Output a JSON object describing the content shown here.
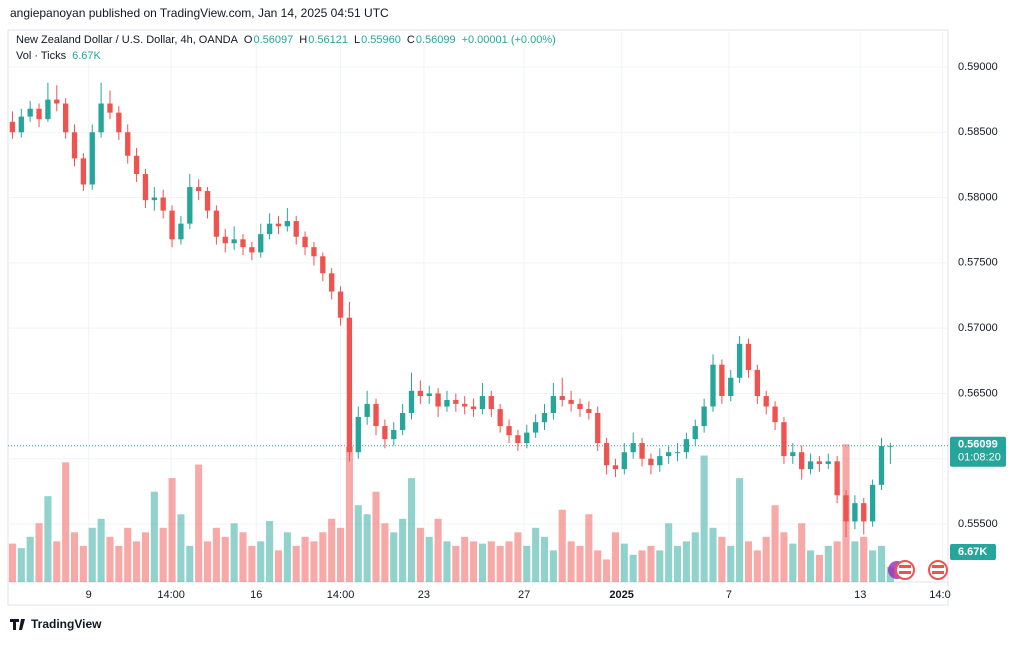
{
  "header": {
    "attribution": "angiepanoyan published on TradingView.com, Jan 14, 2025 04:51 UTC"
  },
  "chart_data": {
    "type": "candlestick",
    "title": "New Zealand Dollar / U.S. Dollar, 4h, OANDA",
    "ohlc_legend": [
      {
        "label": "O",
        "value": "0.56097"
      },
      {
        "label": "H",
        "value": "0.56121"
      },
      {
        "label": "L",
        "value": "0.55960"
      },
      {
        "label": "C",
        "value": "0.56099"
      }
    ],
    "change": "+0.00001 (+0.00%)",
    "volume_title": "Vol · Ticks",
    "volume_value": "6.67K",
    "last_price": {
      "value": 0.56099,
      "label": "0.56099"
    },
    "countdown": "01:08:20",
    "up_color": "#26a69a",
    "down_color": "#ef5350",
    "grid": true,
    "ylim": [
      0.55056,
      0.59283
    ],
    "yticks": [
      {
        "value": 0.59,
        "label": "0.59000"
      },
      {
        "value": 0.585,
        "label": "0.58500"
      },
      {
        "value": 0.58,
        "label": "0.58000"
      },
      {
        "value": 0.575,
        "label": "0.57500"
      },
      {
        "value": 0.57,
        "label": "0.57000"
      },
      {
        "value": 0.565,
        "label": "0.56500"
      },
      {
        "value": 0.56,
        "label": "0.56000"
      },
      {
        "value": 0.555,
        "label": "0.55500"
      }
    ],
    "xlim": [
      -0.5,
      105.5
    ],
    "xticks": [
      {
        "value": 8.6,
        "label": "9"
      },
      {
        "value": 17.9,
        "label": "14:00"
      },
      {
        "value": 27.5,
        "label": "16"
      },
      {
        "value": 37,
        "label": "14:00"
      },
      {
        "value": 46.4,
        "label": "23"
      },
      {
        "value": 57.7,
        "label": "27"
      },
      {
        "value": 68.7,
        "label": "2025"
      },
      {
        "value": 80.8,
        "label": "7"
      },
      {
        "value": 95.6,
        "label": "13"
      },
      {
        "value": 104.9,
        "label": "14:0"
      }
    ],
    "vlim": [
      0,
      62000
    ],
    "candles": [
      [
        0.5858,
        0.5866,
        0.5845,
        0.585
      ],
      [
        0.585,
        0.5868,
        0.5846,
        0.5862
      ],
      [
        0.5862,
        0.5874,
        0.5858,
        0.5868
      ],
      [
        0.5868,
        0.5872,
        0.5854,
        0.586
      ],
      [
        0.586,
        0.5888,
        0.5858,
        0.5875
      ],
      [
        0.5875,
        0.5886,
        0.5866,
        0.5872
      ],
      [
        0.5872,
        0.5876,
        0.5845,
        0.585
      ],
      [
        0.585,
        0.5856,
        0.5824,
        0.583
      ],
      [
        0.583,
        0.5834,
        0.5805,
        0.581
      ],
      [
        0.581,
        0.5856,
        0.5806,
        0.585
      ],
      [
        0.585,
        0.5888,
        0.5846,
        0.5872
      ],
      [
        0.5872,
        0.5882,
        0.586,
        0.5865
      ],
      [
        0.5865,
        0.587,
        0.5844,
        0.585
      ],
      [
        0.585,
        0.5856,
        0.5826,
        0.5832
      ],
      [
        0.5832,
        0.5838,
        0.5812,
        0.5818
      ],
      [
        0.5818,
        0.5822,
        0.5792,
        0.5798
      ],
      [
        0.5798,
        0.5808,
        0.579,
        0.58
      ],
      [
        0.58,
        0.5806,
        0.5784,
        0.579
      ],
      [
        0.579,
        0.5794,
        0.5762,
        0.5768
      ],
      [
        0.5768,
        0.5786,
        0.5764,
        0.578
      ],
      [
        0.578,
        0.5818,
        0.5776,
        0.5808
      ],
      [
        0.5808,
        0.5814,
        0.5798,
        0.5805
      ],
      [
        0.5805,
        0.5808,
        0.5784,
        0.579
      ],
      [
        0.579,
        0.5794,
        0.5764,
        0.577
      ],
      [
        0.577,
        0.5776,
        0.5758,
        0.5765
      ],
      [
        0.5765,
        0.5778,
        0.576,
        0.5768
      ],
      [
        0.5768,
        0.5772,
        0.5756,
        0.5762
      ],
      [
        0.5762,
        0.5766,
        0.5752,
        0.5758
      ],
      [
        0.5758,
        0.578,
        0.5754,
        0.5772
      ],
      [
        0.5772,
        0.5788,
        0.5768,
        0.578
      ],
      [
        0.578,
        0.5786,
        0.5772,
        0.5778
      ],
      [
        0.5778,
        0.5792,
        0.5774,
        0.5782
      ],
      [
        0.5782,
        0.5786,
        0.5764,
        0.577
      ],
      [
        0.577,
        0.5774,
        0.5756,
        0.5762
      ],
      [
        0.5762,
        0.5766,
        0.5748,
        0.5755
      ],
      [
        0.5755,
        0.5758,
        0.5736,
        0.5742
      ],
      [
        0.5742,
        0.5746,
        0.5722,
        0.5728
      ],
      [
        0.5728,
        0.5732,
        0.5702,
        0.5708
      ],
      [
        0.5708,
        0.572,
        0.5598,
        0.5605
      ],
      [
        0.5605,
        0.564,
        0.56,
        0.5632
      ],
      [
        0.5632,
        0.5652,
        0.5626,
        0.5642
      ],
      [
        0.5642,
        0.5646,
        0.5618,
        0.5625
      ],
      [
        0.5625,
        0.563,
        0.5608,
        0.5615
      ],
      [
        0.5615,
        0.5628,
        0.561,
        0.5622
      ],
      [
        0.5622,
        0.5642,
        0.5618,
        0.5635
      ],
      [
        0.5635,
        0.5666,
        0.563,
        0.5652
      ],
      [
        0.5652,
        0.566,
        0.5642,
        0.5648
      ],
      [
        0.5648,
        0.5656,
        0.5642,
        0.565
      ],
      [
        0.565,
        0.5654,
        0.5632,
        0.564
      ],
      [
        0.564,
        0.5652,
        0.5636,
        0.5645
      ],
      [
        0.5645,
        0.565,
        0.5636,
        0.5642
      ],
      [
        0.5642,
        0.5648,
        0.5634,
        0.564
      ],
      [
        0.564,
        0.5646,
        0.5632,
        0.5638
      ],
      [
        0.5638,
        0.5658,
        0.5634,
        0.5648
      ],
      [
        0.5648,
        0.5652,
        0.5632,
        0.5638
      ],
      [
        0.5638,
        0.5642,
        0.562,
        0.5625
      ],
      [
        0.5625,
        0.563,
        0.5612,
        0.5618
      ],
      [
        0.5618,
        0.5622,
        0.5606,
        0.5612
      ],
      [
        0.5612,
        0.5626,
        0.5608,
        0.562
      ],
      [
        0.562,
        0.5634,
        0.5616,
        0.5628
      ],
      [
        0.5628,
        0.5642,
        0.5622,
        0.5635
      ],
      [
        0.5635,
        0.5658,
        0.563,
        0.5648
      ],
      [
        0.5648,
        0.5662,
        0.564,
        0.5645
      ],
      [
        0.5645,
        0.5652,
        0.5636,
        0.5642
      ],
      [
        0.5642,
        0.5646,
        0.5632,
        0.5638
      ],
      [
        0.5638,
        0.5644,
        0.563,
        0.5635
      ],
      [
        0.5635,
        0.564,
        0.5606,
        0.5612
      ],
      [
        0.5612,
        0.5616,
        0.5588,
        0.5595
      ],
      [
        0.5595,
        0.56,
        0.5586,
        0.5592
      ],
      [
        0.5592,
        0.5612,
        0.5588,
        0.5605
      ],
      [
        0.5605,
        0.562,
        0.56,
        0.5612
      ],
      [
        0.5612,
        0.5616,
        0.5594,
        0.56
      ],
      [
        0.56,
        0.5604,
        0.5588,
        0.5595
      ],
      [
        0.5595,
        0.5608,
        0.559,
        0.5602
      ],
      [
        0.5602,
        0.561,
        0.5596,
        0.5605
      ],
      [
        0.5605,
        0.5612,
        0.5598,
        0.5605
      ],
      [
        0.5605,
        0.562,
        0.56,
        0.5615
      ],
      [
        0.5615,
        0.563,
        0.561,
        0.5625
      ],
      [
        0.5625,
        0.5646,
        0.562,
        0.564
      ],
      [
        0.564,
        0.568,
        0.5636,
        0.5672
      ],
      [
        0.5672,
        0.5676,
        0.5642,
        0.5648
      ],
      [
        0.5648,
        0.5668,
        0.5644,
        0.5662
      ],
      [
        0.5662,
        0.5694,
        0.5658,
        0.5688
      ],
      [
        0.5688,
        0.5692,
        0.5662,
        0.5668
      ],
      [
        0.5668,
        0.5672,
        0.5642,
        0.5648
      ],
      [
        0.5648,
        0.5652,
        0.5634,
        0.564
      ],
      [
        0.564,
        0.5644,
        0.5622,
        0.5628
      ],
      [
        0.5628,
        0.5632,
        0.5596,
        0.5602
      ],
      [
        0.5602,
        0.5612,
        0.5596,
        0.5605
      ],
      [
        0.5605,
        0.561,
        0.5584,
        0.5592
      ],
      [
        0.5592,
        0.5604,
        0.5588,
        0.5598
      ],
      [
        0.5598,
        0.5602,
        0.559,
        0.5596
      ],
      [
        0.5596,
        0.5604,
        0.5592,
        0.5598
      ],
      [
        0.5598,
        0.5602,
        0.5566,
        0.5572
      ],
      [
        0.5572,
        0.5576,
        0.554,
        0.5552
      ],
      [
        0.5552,
        0.5572,
        0.5546,
        0.5566
      ],
      [
        0.5566,
        0.557,
        0.5542,
        0.5552
      ],
      [
        0.5552,
        0.5584,
        0.5548,
        0.558
      ],
      [
        0.558,
        0.5616,
        0.5576,
        0.56097
      ],
      [
        0.56097,
        0.56121,
        0.5596,
        0.56099
      ]
    ],
    "volumes": [
      17000,
      15000,
      20000,
      26000,
      38000,
      18000,
      53000,
      22000,
      16000,
      24000,
      28000,
      20000,
      16000,
      24000,
      18000,
      22000,
      40000,
      24000,
      46000,
      30000,
      16000,
      52000,
      18000,
      24000,
      20000,
      26000,
      22000,
      16000,
      18000,
      27000,
      14000,
      22000,
      16000,
      20000,
      18000,
      22000,
      28000,
      24000,
      60000,
      34000,
      30000,
      40000,
      26000,
      22000,
      28000,
      46000,
      24000,
      20000,
      28000,
      18000,
      16000,
      20000,
      18000,
      17000,
      18000,
      16000,
      18000,
      22000,
      16000,
      24000,
      20000,
      14000,
      32000,
      18000,
      16000,
      30000,
      14000,
      10000,
      22000,
      17000,
      12000,
      14000,
      16000,
      14000,
      26000,
      16000,
      18000,
      22000,
      56000,
      24000,
      20000,
      16000,
      46000,
      18000,
      14000,
      20000,
      34000,
      22000,
      17000,
      26000,
      14000,
      12000,
      16000,
      18000,
      61000,
      18000,
      20000,
      14000,
      16000,
      6670
    ]
  },
  "footer": {
    "brand": "TradingView"
  }
}
